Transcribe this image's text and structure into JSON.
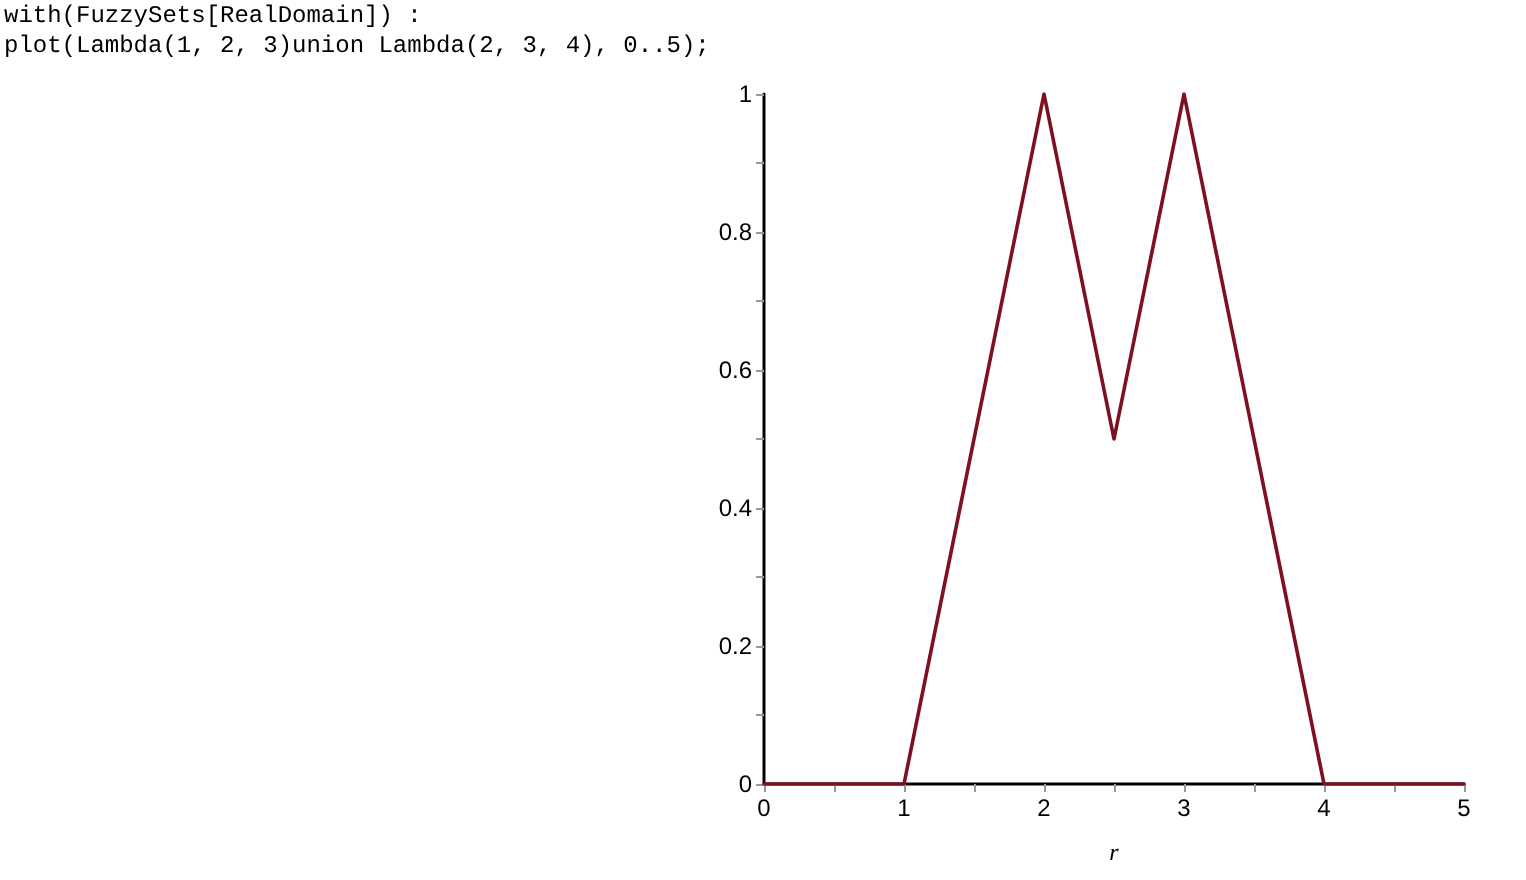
{
  "chart_data": {
    "type": "line",
    "annotations": [
      "with(FuzzySets[RealDomain]) :",
      "plot(Lambda(1, 2, 3)union Lambda(2, 3, 4), 0..5);"
    ],
    "xlabel": "r",
    "x": [
      0,
      1,
      2,
      2.5,
      3,
      4,
      5
    ],
    "series": [
      {
        "color": "#7f1020",
        "values": [
          0,
          0,
          1,
          0.5,
          1,
          0,
          0
        ]
      }
    ],
    "xlim": [
      0,
      5
    ],
    "ylim": [
      0,
      1
    ],
    "xticks": [
      0,
      {
        "value": 0.5,
        "label": null
      },
      1,
      {
        "value": 1.5,
        "label": null
      },
      2,
      {
        "value": 2.5,
        "label": null
      },
      3,
      {
        "value": 3.5,
        "label": null
      },
      4,
      {
        "value": 4.5,
        "label": null
      },
      5
    ],
    "yticks": [
      0,
      {
        "value": 0.1,
        "label": null
      },
      0.2,
      {
        "value": 0.3,
        "label": null
      },
      0.4,
      {
        "value": 0.5,
        "label": null
      },
      0.6,
      {
        "value": 0.7,
        "label": null
      },
      0.8,
      {
        "value": 0.9,
        "label": null
      },
      1
    ],
    "grid": false,
    "marker": "none",
    "line_style": "solid"
  }
}
